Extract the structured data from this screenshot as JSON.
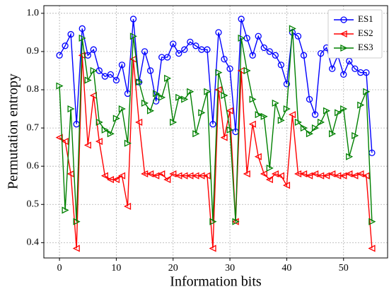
{
  "chart_data": {
    "type": "line",
    "xlabel": "Information bits",
    "ylabel": "Permutation entropy",
    "x": [
      0,
      1,
      2,
      3,
      4,
      5,
      6,
      7,
      8,
      9,
      10,
      11,
      12,
      13,
      14,
      15,
      16,
      17,
      18,
      19,
      20,
      21,
      22,
      23,
      24,
      25,
      26,
      27,
      28,
      29,
      30,
      31,
      32,
      33,
      34,
      35,
      36,
      37,
      38,
      39,
      40,
      41,
      42,
      43,
      44,
      45,
      46,
      47,
      48,
      49,
      50,
      51,
      52,
      53,
      54,
      55
    ],
    "series": [
      {
        "name": "ES1",
        "color": "#0000ff",
        "marker": "circle",
        "values": [
          0.89,
          0.915,
          0.945,
          0.71,
          0.96,
          0.89,
          0.905,
          0.85,
          0.835,
          0.84,
          0.825,
          0.865,
          0.79,
          0.985,
          0.82,
          0.9,
          0.85,
          0.77,
          0.885,
          0.885,
          0.92,
          0.895,
          0.905,
          0.925,
          0.915,
          0.905,
          0.905,
          0.71,
          0.95,
          0.88,
          0.855,
          0.69,
          0.985,
          0.935,
          0.89,
          0.94,
          0.91,
          0.9,
          0.89,
          0.865,
          0.815,
          0.95,
          0.94,
          0.89,
          0.775,
          0.735,
          0.895,
          0.91,
          0.855,
          0.89,
          0.84,
          0.875,
          0.855,
          0.845,
          0.845,
          0.635
        ]
      },
      {
        "name": "ES2",
        "color": "#ff0000",
        "marker": "triangle-left",
        "values": [
          0.675,
          0.665,
          0.58,
          0.385,
          0.89,
          0.655,
          0.785,
          0.665,
          0.575,
          0.565,
          0.565,
          0.575,
          0.495,
          0.88,
          0.715,
          0.58,
          0.58,
          0.575,
          0.58,
          0.565,
          0.58,
          0.575,
          0.575,
          0.575,
          0.575,
          0.575,
          0.575,
          0.385,
          0.8,
          0.675,
          0.745,
          0.455,
          0.85,
          0.58,
          0.71,
          0.625,
          0.58,
          0.565,
          0.58,
          0.575,
          0.55,
          0.735,
          0.58,
          0.58,
          0.575,
          0.58,
          0.575,
          0.575,
          0.58,
          0.575,
          0.575,
          0.58,
          0.575,
          0.58,
          0.575,
          0.385
        ]
      },
      {
        "name": "ES3",
        "color": "#008000",
        "marker": "triangle-right",
        "values": [
          0.81,
          0.485,
          0.75,
          0.455,
          0.935,
          0.825,
          0.85,
          0.715,
          0.695,
          0.685,
          0.725,
          0.75,
          0.66,
          0.94,
          0.82,
          0.765,
          0.745,
          0.79,
          0.78,
          0.83,
          0.715,
          0.78,
          0.775,
          0.795,
          0.685,
          0.74,
          0.795,
          0.455,
          0.845,
          0.785,
          0.695,
          0.455,
          0.935,
          0.85,
          0.775,
          0.735,
          0.73,
          0.595,
          0.765,
          0.72,
          0.75,
          0.96,
          0.715,
          0.7,
          0.685,
          0.7,
          0.715,
          0.745,
          0.685,
          0.74,
          0.75,
          0.625,
          0.68,
          0.76,
          0.795,
          0.455
        ]
      }
    ],
    "xlim": [
      -2.75,
      57.75
    ],
    "xticks": [
      0,
      10,
      20,
      30,
      40,
      50
    ],
    "ylim": [
      0.36,
      1.02
    ],
    "yticks": [
      {
        "value": 0.4,
        "label": "0.4"
      },
      {
        "value": 0.5,
        "label": "0.5"
      },
      {
        "value": 0.6,
        "label": "0.6"
      },
      {
        "value": 0.7,
        "label": "0.7"
      },
      {
        "value": 0.8,
        "label": "0.8"
      },
      {
        "value": 0.9,
        "label": "0.9"
      },
      {
        "value": 1.0,
        "label": "1.0"
      }
    ],
    "grid": true,
    "legend": "upper right"
  }
}
